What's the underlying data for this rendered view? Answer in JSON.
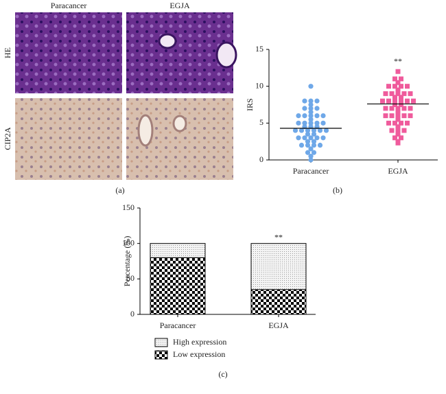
{
  "panel_a": {
    "columns": [
      "Paracancer",
      "EGJA"
    ],
    "rows": [
      "HE",
      "CIP2A"
    ],
    "label": "(a)"
  },
  "chart_data": [
    {
      "type": "strip",
      "label": "(b)",
      "ylabel": "IRS",
      "annotation": "**",
      "categories": [
        "Paracancer",
        "EGJA"
      ],
      "series": [
        {
          "color": "#6fa8e8",
          "marker": "circle",
          "values": [
            10,
            8,
            8,
            8,
            7.5,
            7,
            7,
            7,
            6.5,
            6,
            6,
            6,
            6,
            6,
            5.5,
            5,
            5,
            5,
            5,
            5,
            4.5,
            4.5,
            4.5,
            4,
            4,
            4,
            4,
            4,
            4,
            3.5,
            3.5,
            3,
            3,
            3,
            3,
            3,
            2.5,
            2.5,
            2,
            2,
            2,
            2,
            1.5,
            1,
            1,
            0.5,
            0
          ]
        },
        {
          "color": "#ef5b9c",
          "marker": "square",
          "values": [
            12,
            11,
            11,
            10.5,
            10,
            10,
            10,
            10,
            9.5,
            9,
            9,
            9,
            9,
            9,
            8.5,
            8.5,
            8,
            8,
            8,
            8,
            8,
            8,
            7.5,
            7.5,
            7,
            7,
            7,
            7,
            7,
            6.5,
            6,
            6,
            6,
            6,
            6,
            5.5,
            5,
            5,
            5,
            5,
            4.5,
            4,
            4,
            4,
            3.5,
            3,
            3,
            2.5,
            2.3
          ]
        }
      ],
      "means": [
        4.3,
        7.6
      ],
      "ylim": [
        0,
        15
      ],
      "yticks": [
        0,
        5,
        10,
        15
      ]
    },
    {
      "type": "stacked_bar",
      "label": "(c)",
      "ylabel": "Percentage (%)",
      "annotation": "**",
      "categories": [
        "Paracancer",
        "EGJA"
      ],
      "series": [
        {
          "name": "Low expression",
          "fill": "checker",
          "values": [
            80,
            35
          ]
        },
        {
          "name": "High expression",
          "fill": "dots",
          "values": [
            20,
            65
          ]
        }
      ],
      "ylim": [
        0,
        150
      ],
      "yticks": [
        0,
        50,
        100,
        150
      ]
    }
  ]
}
